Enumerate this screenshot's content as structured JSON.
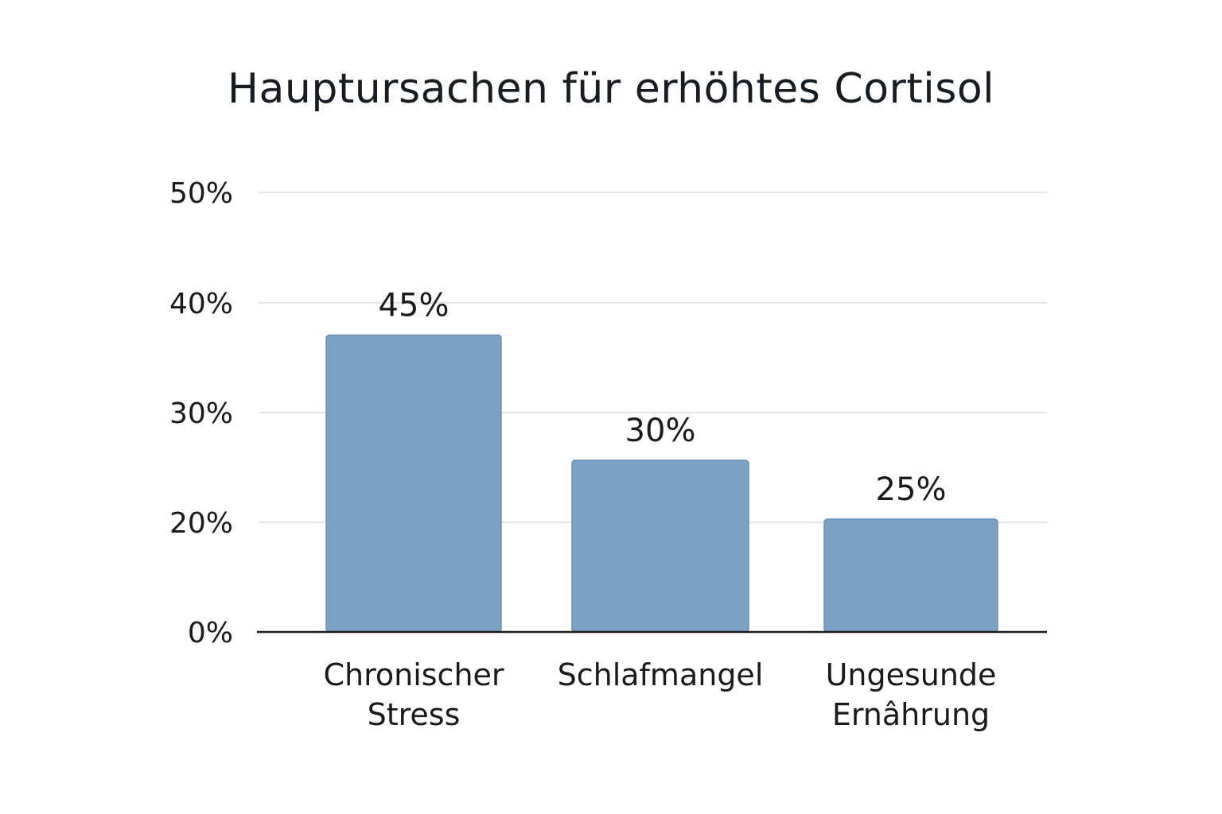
{
  "chart_data": {
    "type": "bar",
    "title": "Hauptursachen für erhöhtes Cortisol",
    "categories": [
      [
        "Chronischer",
        "Stress"
      ],
      [
        "Schlafmangel"
      ],
      [
        "Ungesunde",
        "Ernâhrung"
      ]
    ],
    "values": [
      45,
      30,
      25
    ],
    "value_labels": [
      "45%",
      "30%",
      "25%"
    ],
    "y_ticks": [
      0,
      20,
      30,
      40,
      50
    ],
    "y_tick_labels": [
      "0%",
      "20%",
      "30%",
      "40%",
      "50%"
    ],
    "ylim": [
      0,
      50
    ],
    "grid": true,
    "bar_color": "#7ba1c4",
    "bar_edge_color": "#6a90b6",
    "grid_color": "#e6e6e6",
    "axis_color": "#1a1a1a"
  }
}
